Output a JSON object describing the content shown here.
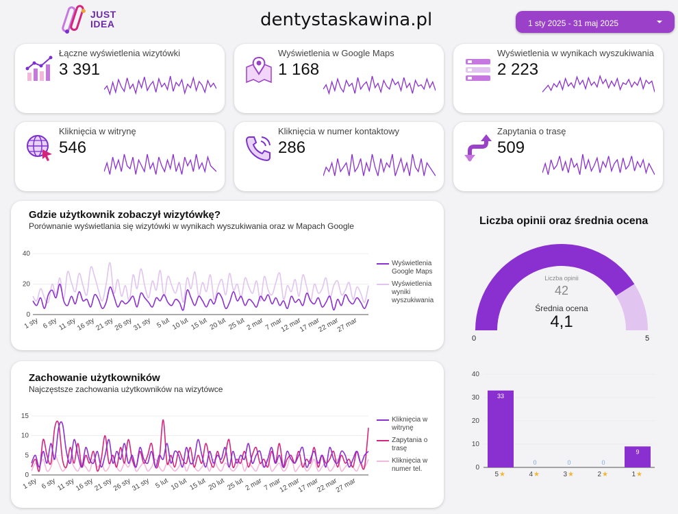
{
  "header": {
    "logo_text_line1": "JUST",
    "logo_text_line2": "IDEA",
    "title": "dentystaskawina.pl",
    "date_range": "1 sty 2025 - 31 maj 2025"
  },
  "kpis": [
    {
      "label": "Łączne wyświetlenia wizytówki",
      "value": "3 391",
      "icon": "chart-growth-icon"
    },
    {
      "label": "Wyświetlenia w Google Maps",
      "value": "1 168",
      "icon": "map-pin-icon"
    },
    {
      "label": "Wyświetlenia w wynikach wyszukiwania",
      "value": "2 223",
      "icon": "search-results-icon"
    },
    {
      "label": "Kliknięcia w witrynę",
      "value": "546",
      "icon": "globe-cursor-icon"
    },
    {
      "label": "Kliknięcia w numer kontaktowy",
      "value": "286",
      "icon": "phone-icon"
    },
    {
      "label": "Zapytania o trasę",
      "value": "509",
      "icon": "directions-icon"
    }
  ],
  "views_section": {
    "title": "Gdzie użytkownik zobaczył wizytówkę?",
    "subtitle": "Porównanie wyświetlania się wizytówki w wynikach wyszukiwania oraz w Mapach Google"
  },
  "behaviour_section": {
    "title": "Zachowanie użytkowników",
    "subtitle": "Najczęstsze zachowania użytkowników na wizytówce"
  },
  "gauge_section": {
    "title": "Liczba opinii oraz średnia ocena",
    "reviews_label": "Liczba opinii",
    "reviews_value": "42",
    "rating_label": "Średnia ocena",
    "rating_value": "4,1",
    "min_label": "0",
    "max_label": "5"
  },
  "colors": {
    "purple": "#8a2fd0",
    "light_purple": "#e1c4ef",
    "pink": "#d4257c",
    "light_pink": "#f2b8dc",
    "accent": "#9b41c9"
  },
  "chart_data": [
    {
      "id": "views",
      "type": "line",
      "x_tick_labels": [
        "1 sty",
        "6 sty",
        "11 sty",
        "16 sty",
        "21 sty",
        "26 sty",
        "31 sty",
        "5 lut",
        "10 lut",
        "15 lut",
        "20 lut",
        "25 lut",
        "2 mar",
        "7 mar",
        "12 mar",
        "17 mar",
        "22 mar",
        "27 mar"
      ],
      "ylim": [
        0,
        40
      ],
      "y_ticks": [
        0,
        20,
        40
      ],
      "grid": true,
      "legend_position": "right",
      "series": [
        {
          "name": "Wyświetlenia Google Maps",
          "color": "#8a2fd0",
          "values": [
            9,
            6,
            11,
            4,
            13,
            16,
            11,
            20,
            9,
            6,
            12,
            7,
            15,
            9,
            10,
            5,
            13,
            10,
            4,
            8,
            18,
            12,
            5,
            9,
            7,
            9,
            12,
            5,
            14,
            11,
            8,
            5,
            11,
            9,
            13,
            8,
            6,
            10,
            8,
            3,
            16,
            11,
            6,
            12,
            9,
            5,
            10,
            7,
            14,
            11,
            4,
            8,
            15,
            9,
            12,
            6,
            10,
            8,
            5,
            12,
            9,
            13,
            7,
            11,
            6,
            9,
            4,
            12,
            8,
            10,
            6,
            14,
            9,
            7,
            11,
            5,
            8,
            12,
            3,
            10,
            6,
            13,
            9,
            7,
            11,
            8,
            4,
            10
          ]
        },
        {
          "name": "Wyświetlenia wyniki wyszukiwania",
          "color": "#e1c4ef",
          "values": [
            12,
            9,
            17,
            11,
            8,
            20,
            13,
            24,
            10,
            28,
            21,
            15,
            27,
            19,
            13,
            31,
            25,
            16,
            9,
            20,
            34,
            14,
            23,
            12,
            19,
            9,
            26,
            17,
            30,
            19,
            11,
            22,
            16,
            29,
            12,
            25,
            19,
            14,
            21,
            8,
            24,
            17,
            28,
            12,
            21,
            15,
            26,
            10,
            18,
            23,
            13,
            27,
            16,
            20,
            11,
            24,
            18,
            14,
            22,
            9,
            25,
            16,
            13,
            21,
            27,
            10,
            19,
            15,
            23,
            12,
            26,
            18,
            9,
            20,
            14,
            17,
            24,
            11,
            19,
            22,
            13,
            16,
            21,
            10,
            18,
            14,
            8,
            19
          ]
        }
      ]
    },
    {
      "id": "behaviour",
      "type": "line",
      "x_tick_labels": [
        "1 sty",
        "6 sty",
        "11 sty",
        "16 sty",
        "21 sty",
        "26 sty",
        "31 sty",
        "5 lut",
        "10 lut",
        "15 lut",
        "20 lut",
        "25 lut",
        "2 mar",
        "7 mar",
        "12 mar",
        "17 mar",
        "22 mar",
        "27 mar"
      ],
      "ylim": [
        0,
        15
      ],
      "y_ticks": [
        0,
        5,
        10,
        15
      ],
      "grid": true,
      "legend_position": "right",
      "series": [
        {
          "name": "Kliknięcia w witrynę",
          "color": "#8a2fd0",
          "values": [
            3,
            5,
            2,
            6,
            3,
            8,
            4,
            12,
            13,
            6,
            3,
            9,
            5,
            2,
            7,
            4,
            3,
            6,
            2,
            5,
            9,
            3,
            6,
            4,
            8,
            3,
            5,
            2,
            7,
            4,
            3,
            6,
            2,
            5,
            4,
            8,
            3,
            6,
            5,
            2,
            7,
            3,
            4,
            9,
            5,
            2,
            6,
            3,
            5,
            4,
            7,
            2,
            6,
            3,
            5,
            4,
            8,
            3,
            5,
            6,
            2,
            4,
            7,
            3,
            5,
            2,
            6,
            4,
            3,
            5,
            7,
            2,
            4,
            6,
            3,
            5,
            2,
            7,
            4,
            3,
            6,
            5,
            2,
            4,
            6,
            3,
            5,
            6
          ]
        },
        {
          "name": "Zapytania o trasę",
          "color": "#d4257c",
          "values": [
            2,
            4,
            1,
            9,
            5,
            3,
            12,
            13,
            4,
            2,
            7,
            3,
            8,
            2,
            5,
            3,
            6,
            1,
            4,
            10,
            3,
            5,
            2,
            7,
            3,
            9,
            4,
            2,
            6,
            3,
            5,
            8,
            2,
            4,
            14,
            3,
            5,
            2,
            6,
            4,
            3,
            7,
            2,
            5,
            3,
            8,
            4,
            2,
            6,
            3,
            5,
            9,
            2,
            4,
            3,
            6,
            2,
            5,
            7,
            3,
            4,
            2,
            6,
            3,
            8,
            2,
            4,
            5,
            3,
            6,
            2,
            4,
            3,
            7,
            2,
            5,
            3,
            4,
            6,
            2,
            5,
            3,
            4,
            2,
            6,
            3,
            2,
            12
          ]
        },
        {
          "name": "Kliknięcia w numer tel.",
          "color": "#f2b8dc",
          "values": [
            1,
            3,
            2,
            4,
            1,
            2,
            5,
            3,
            1,
            2,
            4,
            2,
            1,
            3,
            2,
            1,
            4,
            2,
            3,
            1,
            2,
            5,
            2,
            1,
            3,
            2,
            4,
            1,
            2,
            3,
            1,
            2,
            4,
            2,
            1,
            3,
            2,
            1,
            2,
            4,
            1,
            3,
            2,
            1,
            2,
            3,
            1,
            4,
            2,
            1,
            3,
            2,
            1,
            2,
            4,
            1,
            3,
            2,
            1,
            3,
            2,
            4,
            1,
            2,
            3,
            1,
            2,
            5,
            1,
            2,
            3,
            1,
            2,
            4,
            1,
            2,
            3,
            1,
            2,
            4,
            1,
            2,
            3,
            2,
            1,
            3,
            2,
            4
          ]
        }
      ]
    },
    {
      "id": "ratings",
      "type": "bar",
      "categories": [
        "5",
        "4",
        "3",
        "2",
        "1"
      ],
      "category_icon": "star-icon",
      "values": [
        33,
        0,
        0,
        0,
        9
      ],
      "ylim": [
        0,
        40
      ],
      "y_ticks": [
        0,
        10,
        20,
        30,
        40
      ],
      "grid": true,
      "color": "#8a2fd0"
    },
    {
      "id": "rating_gauge",
      "type": "gauge",
      "value": 4.1,
      "min": 0,
      "max": 5
    }
  ],
  "sparklines": [
    [
      14,
      18,
      9,
      22,
      11,
      25,
      17,
      12,
      27,
      15,
      20,
      10,
      24,
      16,
      28,
      13,
      19,
      23,
      11,
      26,
      17,
      21,
      14,
      29,
      12,
      22,
      18,
      25,
      10,
      20,
      16,
      27,
      13,
      23,
      19,
      11,
      24,
      17,
      21,
      15
    ],
    [
      9,
      12,
      6,
      14,
      8,
      16,
      10,
      7,
      15,
      11,
      13,
      6,
      17,
      9,
      12,
      14,
      8,
      18,
      10,
      13,
      7,
      15,
      11,
      9,
      16,
      12,
      14,
      8,
      17,
      10,
      13,
      6,
      15,
      11,
      12,
      9,
      16,
      10,
      14,
      8
    ],
    [
      12,
      16,
      20,
      14,
      22,
      18,
      25,
      15,
      28,
      19,
      23,
      17,
      30,
      21,
      26,
      16,
      29,
      20,
      24,
      18,
      31,
      22,
      27,
      17,
      25,
      19,
      28,
      15,
      23,
      21,
      27,
      18,
      24,
      20,
      29,
      16,
      26,
      22,
      25,
      12
    ],
    [
      3,
      6,
      2,
      8,
      4,
      7,
      3,
      9,
      5,
      4,
      8,
      2,
      7,
      5,
      3,
      9,
      4,
      6,
      2,
      8,
      5,
      3,
      7,
      4,
      9,
      3,
      6,
      2,
      8,
      5,
      7,
      3,
      9,
      4,
      6,
      3,
      8,
      5,
      4,
      3
    ],
    [
      1,
      3,
      2,
      4,
      1,
      5,
      2,
      3,
      4,
      1,
      6,
      2,
      3,
      5,
      1,
      4,
      2,
      6,
      3,
      1,
      5,
      2,
      4,
      3,
      6,
      1,
      3,
      5,
      2,
      4,
      1,
      6,
      3,
      2,
      5,
      1,
      4,
      3,
      2,
      1
    ],
    [
      4,
      9,
      3,
      11,
      6,
      8,
      13,
      5,
      10,
      4,
      12,
      7,
      9,
      3,
      14,
      6,
      11,
      5,
      8,
      12,
      4,
      10,
      7,
      13,
      5,
      9,
      11,
      4,
      12,
      6,
      8,
      13,
      5,
      10,
      7,
      11,
      4,
      9,
      6,
      3
    ]
  ]
}
